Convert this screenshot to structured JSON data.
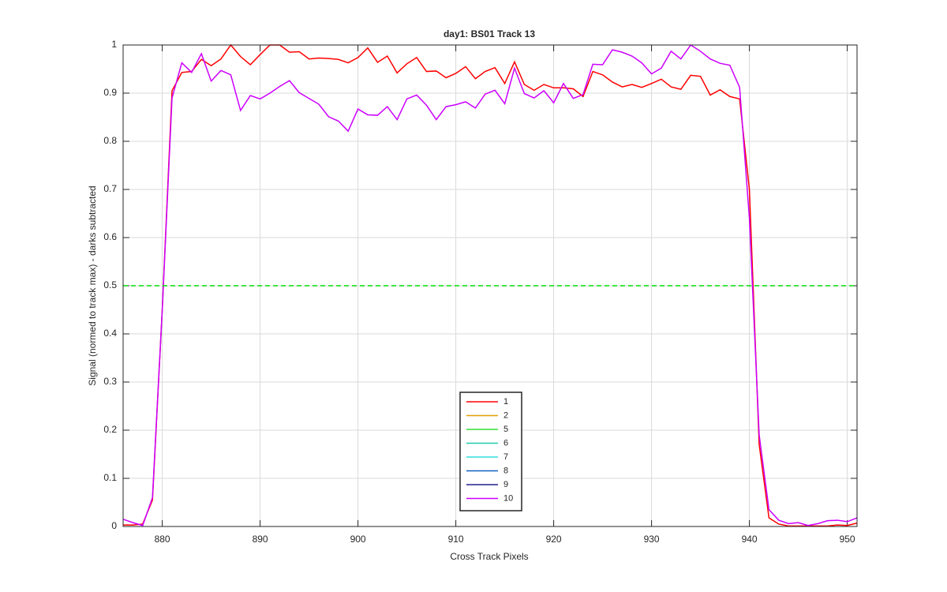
{
  "chart_data": {
    "type": "line",
    "title": "day1: BS01  Track 13",
    "x_label": "Cross Track Pixels",
    "y_label": "Signal (normed to track max) - darks subtracted",
    "x": [
      876,
      877,
      878,
      879,
      880,
      881,
      882,
      883,
      884,
      885,
      886,
      887,
      888,
      889,
      890,
      891,
      892,
      893,
      894,
      895,
      896,
      897,
      898,
      899,
      900,
      901,
      902,
      903,
      904,
      905,
      906,
      907,
      908,
      909,
      910,
      911,
      912,
      913,
      914,
      915,
      916,
      917,
      918,
      919,
      920,
      921,
      922,
      923,
      924,
      925,
      926,
      927,
      928,
      929,
      930,
      931,
      932,
      933,
      934,
      935,
      936,
      937,
      938,
      939,
      940,
      941,
      942,
      943,
      944,
      945,
      946,
      947,
      948,
      949,
      950,
      951
    ],
    "series": [
      {
        "name": "1",
        "color": "#ff0000",
        "values": [
          0.003,
          0.003,
          0.005,
          0.055,
          0.45,
          0.905,
          0.943,
          0.945,
          0.97,
          0.957,
          0.971,
          1.0,
          0.976,
          0.959,
          0.98,
          1.0,
          1.0,
          0.985,
          0.986,
          0.971,
          0.973,
          0.972,
          0.97,
          0.963,
          0.974,
          0.994,
          0.964,
          0.977,
          0.942,
          0.961,
          0.974,
          0.945,
          0.946,
          0.932,
          0.941,
          0.955,
          0.93,
          0.945,
          0.953,
          0.92,
          0.965,
          0.918,
          0.906,
          0.918,
          0.911,
          0.911,
          0.909,
          0.893,
          0.945,
          0.938,
          0.923,
          0.913,
          0.918,
          0.912,
          0.92,
          0.929,
          0.913,
          0.908,
          0.937,
          0.935,
          0.896,
          0.907,
          0.893,
          0.888,
          0.7,
          0.17,
          0.018,
          0.005,
          0.001,
          0.001,
          0.001,
          0.001,
          0.001,
          0.003,
          0.002,
          0.007
        ]
      },
      {
        "name": "2",
        "color": "#e0a000",
        "values": [
          null,
          null,
          null,
          null,
          null,
          null,
          null,
          null,
          null,
          null,
          null,
          null,
          null,
          null,
          null,
          null,
          null,
          null,
          null,
          null,
          null,
          null,
          null,
          null,
          null,
          null,
          null,
          null,
          null,
          null,
          null,
          null,
          null,
          null,
          null,
          null,
          null,
          null,
          null,
          null,
          null,
          null,
          null,
          null,
          null,
          null,
          null,
          null,
          null,
          null,
          null,
          null,
          null,
          null,
          null,
          null,
          null,
          null,
          null,
          null,
          null,
          null,
          null,
          null,
          null,
          null,
          null,
          null,
          null,
          null,
          null,
          null,
          null,
          null,
          null,
          null
        ]
      },
      {
        "name": "5",
        "color": "#33dd33",
        "values": [
          null,
          null,
          null,
          null,
          null,
          null,
          null,
          null,
          null,
          null,
          null,
          null,
          null,
          null,
          null,
          null,
          null,
          null,
          null,
          null,
          null,
          null,
          null,
          null,
          null,
          null,
          null,
          null,
          null,
          null,
          null,
          null,
          null,
          null,
          null,
          null,
          null,
          null,
          null,
          null,
          null,
          null,
          null,
          null,
          null,
          null,
          null,
          null,
          null,
          null,
          null,
          null,
          null,
          null,
          null,
          null,
          null,
          null,
          null,
          null,
          null,
          null,
          null,
          null,
          null,
          null,
          null,
          null,
          null,
          null,
          null,
          null,
          null,
          null,
          null,
          null
        ]
      },
      {
        "name": "6",
        "color": "#22ccaa",
        "values": [
          null,
          null,
          null,
          null,
          null,
          null,
          null,
          null,
          null,
          null,
          null,
          null,
          null,
          null,
          null,
          null,
          null,
          null,
          null,
          null,
          null,
          null,
          null,
          null,
          null,
          null,
          null,
          null,
          null,
          null,
          null,
          null,
          null,
          null,
          null,
          null,
          null,
          null,
          null,
          null,
          null,
          null,
          null,
          null,
          null,
          null,
          null,
          null,
          null,
          null,
          null,
          null,
          null,
          null,
          null,
          null,
          null,
          null,
          null,
          null,
          null,
          null,
          null,
          null,
          null,
          null,
          null,
          null,
          null,
          null,
          null,
          null,
          null,
          null,
          null,
          null
        ]
      },
      {
        "name": "7",
        "color": "#33dddd",
        "values": [
          null,
          null,
          null,
          null,
          null,
          null,
          null,
          null,
          null,
          null,
          null,
          null,
          null,
          null,
          null,
          null,
          null,
          null,
          null,
          null,
          null,
          null,
          null,
          null,
          null,
          null,
          null,
          null,
          null,
          null,
          null,
          null,
          null,
          null,
          null,
          null,
          null,
          null,
          null,
          null,
          null,
          null,
          null,
          null,
          null,
          null,
          null,
          null,
          null,
          null,
          null,
          null,
          null,
          null,
          null,
          null,
          null,
          null,
          null,
          null,
          null,
          null,
          null,
          null,
          null,
          null,
          null,
          null,
          null,
          null,
          null,
          null,
          null,
          null,
          null,
          null
        ]
      },
      {
        "name": "8",
        "color": "#1060c0",
        "values": [
          null,
          null,
          null,
          null,
          null,
          null,
          null,
          null,
          null,
          null,
          null,
          null,
          null,
          null,
          null,
          null,
          null,
          null,
          null,
          null,
          null,
          null,
          null,
          null,
          null,
          null,
          null,
          null,
          null,
          null,
          null,
          null,
          null,
          null,
          null,
          null,
          null,
          null,
          null,
          null,
          null,
          null,
          null,
          null,
          null,
          null,
          null,
          null,
          null,
          null,
          null,
          null,
          null,
          null,
          null,
          null,
          null,
          null,
          null,
          null,
          null,
          null,
          null,
          null,
          null,
          null,
          null,
          null,
          null,
          null,
          null,
          null,
          null,
          null,
          null,
          null
        ]
      },
      {
        "name": "9",
        "color": "#202090",
        "values": [
          null,
          null,
          null,
          null,
          null,
          null,
          null,
          null,
          null,
          null,
          null,
          null,
          null,
          null,
          null,
          null,
          null,
          null,
          null,
          null,
          null,
          null,
          null,
          null,
          null,
          null,
          null,
          null,
          null,
          null,
          null,
          null,
          null,
          null,
          null,
          null,
          null,
          null,
          null,
          null,
          null,
          null,
          null,
          null,
          null,
          null,
          null,
          null,
          null,
          null,
          null,
          null,
          null,
          null,
          null,
          null,
          null,
          null,
          null,
          null,
          null,
          null,
          null,
          null,
          null,
          null,
          null,
          null,
          null,
          null,
          null,
          null,
          null,
          null,
          null,
          null
        ]
      },
      {
        "name": "10",
        "color": "#cc00ff",
        "values": [
          0.015,
          0.008,
          0.002,
          0.06,
          0.45,
          0.89,
          0.963,
          0.943,
          0.982,
          0.925,
          0.947,
          0.938,
          0.864,
          0.895,
          0.888,
          0.9,
          0.914,
          0.926,
          0.901,
          0.889,
          0.877,
          0.851,
          0.842,
          0.821,
          0.867,
          0.855,
          0.854,
          0.872,
          0.845,
          0.888,
          0.896,
          0.875,
          0.845,
          0.872,
          0.876,
          0.882,
          0.869,
          0.898,
          0.906,
          0.878,
          0.952,
          0.899,
          0.89,
          0.905,
          0.88,
          0.92,
          0.889,
          0.897,
          0.96,
          0.959,
          0.99,
          0.985,
          0.977,
          0.963,
          0.94,
          0.952,
          0.987,
          0.971,
          1.0,
          0.987,
          0.971,
          0.962,
          0.958,
          0.912,
          0.64,
          0.19,
          0.035,
          0.013,
          0.006,
          0.008,
          0.002,
          0.006,
          0.012,
          0.013,
          0.01,
          0.018
        ]
      }
    ],
    "reference_line": {
      "value": 0.5,
      "color": "#00dd00"
    },
    "xlim": [
      876,
      951
    ],
    "xticks": [
      880,
      890,
      900,
      910,
      920,
      930,
      940,
      950
    ],
    "ylim": [
      0,
      1
    ],
    "yticks": [
      0,
      0.1,
      0.2,
      0.3,
      0.4,
      0.5,
      0.6,
      0.7,
      0.8,
      0.9,
      1
    ],
    "grid": true,
    "legend_position": "bottom"
  }
}
